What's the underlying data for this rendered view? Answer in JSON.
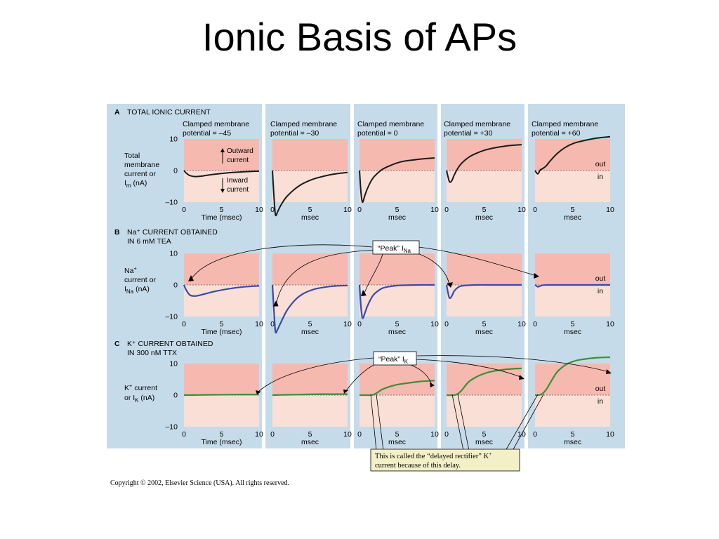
{
  "slide": {
    "title": "Ionic Basis of APs",
    "copyright": "Copyright © 2002, Elsevier Science (USA).  All rights reserved."
  },
  "colors": {
    "panel_bg": "#c6dbea",
    "outward_region": "#f6b9b0",
    "inward_region": "#f9dfd5",
    "divider": "#ffffff",
    "total_trace": "#1a1a1a",
    "na_trace": "#3a4aa8",
    "k_trace": "#3c8f3a",
    "callout_fill": "#ffffff",
    "note_fill": "#f3f0c8"
  },
  "header_labels": {
    "p0": [
      "Clamped membrane",
      "potential = –45"
    ],
    "p1": [
      "Clamped membrane",
      "potential = –30"
    ],
    "p2": [
      "Clamped membrane",
      "potential = 0"
    ],
    "p3": [
      "Clamped membrane",
      "potential = +30"
    ],
    "p4": [
      "Clamped membrane",
      "potential = +60"
    ]
  },
  "annotations": {
    "outward": [
      "Outward",
      "current"
    ],
    "inward": [
      "Inward",
      "current"
    ],
    "peak_ina": "“Peak” I",
    "peak_ina_sub": "Na",
    "peak_ik": "“Peak” I",
    "peak_ik_sub": "K",
    "delay_note": [
      "This is called the “delayed rectifier” K",
      "current because of this delay."
    ],
    "delay_note_sup": "+",
    "out": "out",
    "in": "in"
  },
  "chart_data": [
    {
      "type": "line",
      "panel": "A",
      "title": "TOTAL IONIC CURRENT",
      "ylabel": [
        "Total",
        "membrane",
        "current or",
        "I_m (nA)"
      ],
      "ylim": [
        -10,
        10
      ],
      "yticks": [
        "10",
        "0",
        "–10"
      ],
      "xticks": [
        "0",
        "5",
        "10"
      ],
      "xlim": [
        0,
        10
      ],
      "xlabels": [
        "Time (msec)",
        "msec",
        "msec",
        "msec",
        "msec"
      ],
      "series": [
        {
          "potential": "–45",
          "x": [
            0,
            0.3,
            0.8,
            1.5,
            2.5,
            4,
            6,
            8,
            10
          ],
          "y": [
            0,
            -0.8,
            -1.6,
            -1.9,
            -1.7,
            -1.2,
            -0.7,
            -0.4,
            -0.2
          ]
        },
        {
          "potential": "–30",
          "x": [
            0,
            0.2,
            0.4,
            0.7,
            1,
            1.5,
            2,
            3,
            4,
            5,
            6,
            8,
            10
          ],
          "y": [
            0,
            -8,
            -14,
            -13,
            -11.5,
            -9.5,
            -8,
            -5.8,
            -4.2,
            -3.1,
            -2.3,
            -1.2,
            -0.6
          ]
        },
        {
          "potential": "0",
          "x": [
            0,
            0.2,
            0.4,
            0.7,
            1,
            1.5,
            2,
            3,
            4,
            5,
            6,
            8,
            10
          ],
          "y": [
            0,
            -7,
            -10,
            -8,
            -6,
            -3.5,
            -1.8,
            0.3,
            1.5,
            2.4,
            3,
            3.6,
            4
          ]
        },
        {
          "potential": "+30",
          "x": [
            0,
            0.2,
            0.4,
            0.7,
            1,
            1.5,
            2,
            3,
            4,
            5,
            6,
            8,
            10
          ],
          "y": [
            0,
            -2,
            -3.6,
            -3.2,
            -1.5,
            0.7,
            2.3,
            4.3,
            5.5,
            6.4,
            7,
            7.8,
            8.2
          ]
        },
        {
          "potential": "+60",
          "x": [
            0,
            0.2,
            0.4,
            0.7,
            1,
            1.5,
            2,
            3,
            4,
            5,
            6,
            8,
            10
          ],
          "y": [
            0,
            -0.7,
            -1,
            0.2,
            0.6,
            1.5,
            3,
            5.5,
            7.3,
            8.5,
            9.2,
            10.2,
            10.7
          ]
        }
      ]
    },
    {
      "type": "line",
      "panel": "B",
      "title": [
        "Na⁺ CURRENT OBTAINED",
        "IN 6 mM TEA"
      ],
      "ylabel": [
        "Na⁺",
        "current or",
        "I_Na (nA)"
      ],
      "ylim": [
        -10,
        10
      ],
      "yticks": [
        "10",
        "0",
        "–10"
      ],
      "xticks": [
        "0",
        "5",
        "10"
      ],
      "xlim": [
        0,
        10
      ],
      "xlabels": [
        "Time (msec)",
        "msec",
        "msec",
        "msec",
        "msec"
      ],
      "series": [
        {
          "potential": "–45",
          "x": [
            0,
            0.3,
            0.8,
            1.5,
            2.5,
            4,
            6,
            8,
            10
          ],
          "y": [
            0,
            -1.6,
            -3.2,
            -3.5,
            -3,
            -2.1,
            -1.2,
            -0.6,
            -0.3
          ]
        },
        {
          "potential": "–30",
          "x": [
            0,
            0.2,
            0.4,
            0.7,
            1,
            1.5,
            2,
            3,
            4,
            5,
            6,
            8,
            10
          ],
          "y": [
            0,
            -8,
            -14.8,
            -14,
            -12.5,
            -10,
            -7.8,
            -4.8,
            -2.9,
            -1.8,
            -1.1,
            -0.4,
            -0.2
          ]
        },
        {
          "potential": "0",
          "x": [
            0,
            0.2,
            0.4,
            0.7,
            1,
            1.5,
            2,
            3,
            4,
            5,
            6,
            8,
            10
          ],
          "y": [
            0,
            -7,
            -10.5,
            -9,
            -7,
            -4.5,
            -2.8,
            -1.1,
            -0.5,
            -0.2,
            -0.1,
            0,
            0
          ]
        },
        {
          "potential": "+30",
          "x": [
            0,
            0.2,
            0.4,
            0.7,
            1,
            1.5,
            2,
            3,
            4,
            6,
            8,
            10
          ],
          "y": [
            0,
            -2.5,
            -4.2,
            -3.5,
            -2,
            -0.8,
            -0.3,
            -0.1,
            0,
            0,
            0,
            0
          ]
        },
        {
          "potential": "+60",
          "x": [
            0,
            0.2,
            0.4,
            0.7,
            1,
            1.5,
            2,
            4,
            6,
            8,
            10
          ],
          "y": [
            0,
            -0.3,
            -0.6,
            -0.3,
            -0.1,
            0,
            0,
            0,
            0,
            0,
            0
          ]
        }
      ]
    },
    {
      "type": "line",
      "panel": "C",
      "title": [
        "K⁺ CURRENT OBTAINED",
        "IN 300 nM TTX"
      ],
      "ylabel": [
        "K⁺ current",
        "or I_K (nA)"
      ],
      "ylim": [
        -10,
        10
      ],
      "yticks": [
        "10",
        "0",
        "–10"
      ],
      "xticks": [
        "0",
        "5",
        "10"
      ],
      "xlim": [
        0,
        10
      ],
      "xlabels": [
        "Time (msec)",
        "msec",
        "msec",
        "msec",
        "msec"
      ],
      "series": [
        {
          "potential": "–45",
          "x": [
            0,
            2,
            4,
            6,
            8,
            10
          ],
          "y": [
            0,
            0.05,
            0.1,
            0.15,
            0.2,
            0.2
          ]
        },
        {
          "potential": "–30",
          "x": [
            0,
            2,
            4,
            6,
            8,
            10
          ],
          "y": [
            0,
            0.1,
            0.2,
            0.3,
            0.3,
            0.3
          ]
        },
        {
          "potential": "0",
          "x": [
            0,
            1.5,
            2,
            2.5,
            3,
            4,
            5,
            6,
            8,
            10
          ],
          "y": [
            0,
            0,
            0.3,
            1,
            1.8,
            2.7,
            3.3,
            3.7,
            4.3,
            4.6
          ]
        },
        {
          "potential": "+30",
          "x": [
            0,
            1,
            1.5,
            2,
            2.5,
            3,
            4,
            5,
            6,
            8,
            10
          ],
          "y": [
            0,
            0,
            0.4,
            1.5,
            3,
            4.3,
            5.8,
            6.8,
            7.5,
            8.2,
            8.5
          ]
        },
        {
          "potential": "+60",
          "x": [
            0,
            0.5,
            1,
            1.5,
            2,
            2.5,
            3,
            4,
            5,
            6,
            8,
            10
          ],
          "y": [
            0,
            0,
            0.5,
            1.8,
            3.8,
            5.8,
            7.5,
            9.5,
            10.6,
            11.2,
            11.8,
            12
          ]
        }
      ]
    }
  ]
}
